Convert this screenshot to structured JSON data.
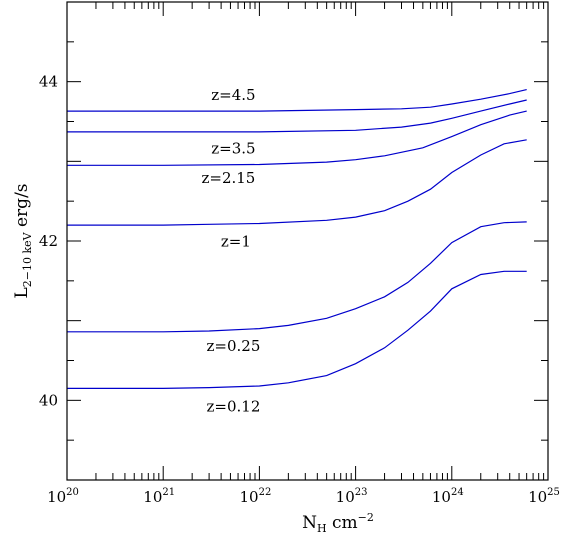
{
  "chart_data": {
    "type": "line",
    "x_scale": "log",
    "xlim": [
      1e+20,
      1e+25
    ],
    "ylim": [
      39,
      45
    ],
    "grid": false,
    "xlabel": {
      "base": "N",
      "sub": "H",
      "unit": " cm",
      "sup": "−2"
    },
    "ylabel": {
      "base": "L",
      "sub": "2−10 keV",
      "unit": " erg/s"
    },
    "x_ticks": [
      {
        "exp": 20,
        "base": "10",
        "sup": "20"
      },
      {
        "exp": 21,
        "base": "10",
        "sup": "21"
      },
      {
        "exp": 22,
        "base": "10",
        "sup": "22"
      },
      {
        "exp": 23,
        "base": "10",
        "sup": "23"
      },
      {
        "exp": 24,
        "base": "10",
        "sup": "24"
      },
      {
        "exp": 25,
        "base": "10",
        "sup": "25"
      }
    ],
    "y_ticks": [
      {
        "value": 40,
        "label": "40"
      },
      {
        "value": 42,
        "label": "42"
      },
      {
        "value": 44,
        "label": "44"
      }
    ],
    "series_color": "#0000cc",
    "series": [
      {
        "label": "z=4.5",
        "label_x": 3.16e+21,
        "label_y": 43.77,
        "points": [
          [
            1e+20,
            43.63
          ],
          [
            1e+21,
            43.63
          ],
          [
            1e+22,
            43.63
          ],
          [
            1e+23,
            43.65
          ],
          [
            3e+23,
            43.66
          ],
          [
            6e+23,
            43.68
          ],
          [
            1e+24,
            43.72
          ],
          [
            2e+24,
            43.78
          ],
          [
            4e+24,
            43.85
          ],
          [
            6e+24,
            43.9
          ]
        ]
      },
      {
        "label": "z=3.5",
        "label_x": 3.16e+21,
        "label_y": 43.1,
        "points": [
          [
            1e+20,
            43.37
          ],
          [
            1e+21,
            43.37
          ],
          [
            1e+22,
            43.37
          ],
          [
            1e+23,
            43.39
          ],
          [
            3e+23,
            43.43
          ],
          [
            6e+23,
            43.48
          ],
          [
            1e+24,
            43.54
          ],
          [
            2e+24,
            43.63
          ],
          [
            4e+24,
            43.72
          ],
          [
            6e+24,
            43.77
          ]
        ]
      },
      {
        "label": "z=2.15",
        "label_x": 2.5e+21,
        "label_y": 42.73,
        "points": [
          [
            1e+20,
            42.95
          ],
          [
            1e+21,
            42.95
          ],
          [
            1e+22,
            42.96
          ],
          [
            5e+22,
            42.99
          ],
          [
            1e+23,
            43.02
          ],
          [
            2e+23,
            43.07
          ],
          [
            5e+23,
            43.17
          ],
          [
            1e+24,
            43.31
          ],
          [
            2e+24,
            43.46
          ],
          [
            4e+24,
            43.58
          ],
          [
            6e+24,
            43.63
          ]
        ]
      },
      {
        "label": "z=1",
        "label_x": 3.98e+21,
        "label_y": 41.93,
        "points": [
          [
            1e+20,
            42.2
          ],
          [
            1e+21,
            42.2
          ],
          [
            3e+21,
            42.21
          ],
          [
            1e+22,
            42.22
          ],
          [
            5e+22,
            42.26
          ],
          [
            1e+23,
            42.3
          ],
          [
            2e+23,
            42.38
          ],
          [
            3.5e+23,
            42.5
          ],
          [
            6e+23,
            42.65
          ],
          [
            1e+24,
            42.86
          ],
          [
            2e+24,
            43.08
          ],
          [
            3.5e+24,
            43.22
          ],
          [
            6e+24,
            43.27
          ]
        ]
      },
      {
        "label": "z=0.25",
        "label_x": 2.82e+21,
        "label_y": 40.62,
        "points": [
          [
            1e+20,
            40.86
          ],
          [
            1e+21,
            40.86
          ],
          [
            3e+21,
            40.87
          ],
          [
            1e+22,
            40.9
          ],
          [
            2e+22,
            40.94
          ],
          [
            5e+22,
            41.03
          ],
          [
            1e+23,
            41.15
          ],
          [
            2e+23,
            41.3
          ],
          [
            3.5e+23,
            41.48
          ],
          [
            6e+23,
            41.72
          ],
          [
            1e+24,
            41.98
          ],
          [
            2e+24,
            42.18
          ],
          [
            3.5e+24,
            42.23
          ],
          [
            6e+24,
            42.24
          ]
        ]
      },
      {
        "label": "z=0.12",
        "label_x": 2.82e+21,
        "label_y": 39.86,
        "points": [
          [
            1e+20,
            40.15
          ],
          [
            1e+21,
            40.15
          ],
          [
            3e+21,
            40.16
          ],
          [
            1e+22,
            40.18
          ],
          [
            2e+22,
            40.22
          ],
          [
            5e+22,
            40.31
          ],
          [
            1e+23,
            40.46
          ],
          [
            2e+23,
            40.66
          ],
          [
            3.5e+23,
            40.88
          ],
          [
            6e+23,
            41.12
          ],
          [
            1e+24,
            41.4
          ],
          [
            2e+24,
            41.58
          ],
          [
            3.5e+24,
            41.62
          ],
          [
            6e+24,
            41.62
          ]
        ]
      }
    ]
  }
}
